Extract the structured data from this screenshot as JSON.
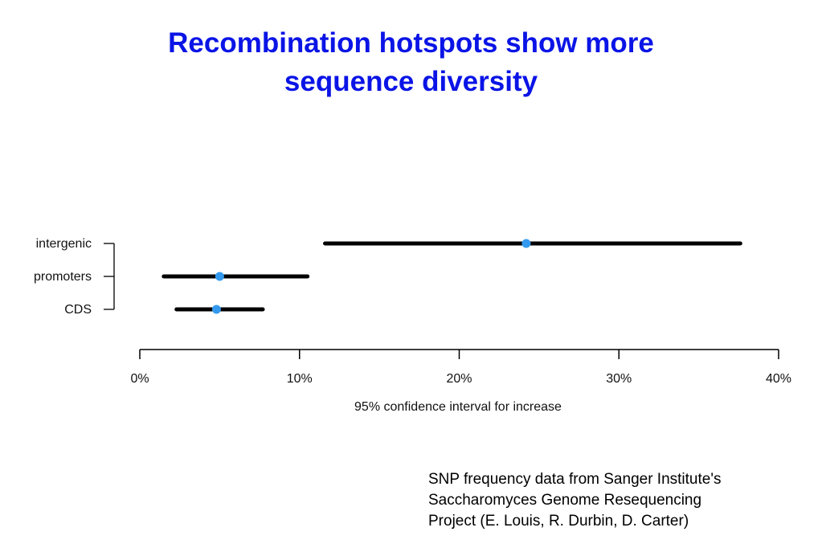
{
  "title_lines": [
    "Recombination hotspots show more",
    "sequence diversity"
  ],
  "footnote_lines": [
    "SNP frequency data from Sanger Institute's",
    "Saccharomyces Genome Resequencing",
    "Project (E. Louis, R. Durbin, D. Carter)"
  ],
  "colors": {
    "title": "#0a14e6",
    "interval": "#000000",
    "point": "#3399ee"
  },
  "chart_data": {
    "type": "interval",
    "xlabel": "95% confidence interval for increase",
    "xlim": [
      0,
      40
    ],
    "xticks": [
      0,
      10,
      20,
      30,
      40
    ],
    "xtick_labels": [
      "0%",
      "10%",
      "20%",
      "30%",
      "40%"
    ],
    "categories": [
      "intergenic",
      "promoters",
      "CDS"
    ],
    "series": [
      {
        "category": "intergenic",
        "estimate": 24.2,
        "lower": 11.6,
        "upper": 37.6
      },
      {
        "category": "promoters",
        "estimate": 5.0,
        "lower": 1.5,
        "upper": 10.5
      },
      {
        "category": "CDS",
        "estimate": 4.8,
        "lower": 2.3,
        "upper": 7.7
      }
    ]
  }
}
